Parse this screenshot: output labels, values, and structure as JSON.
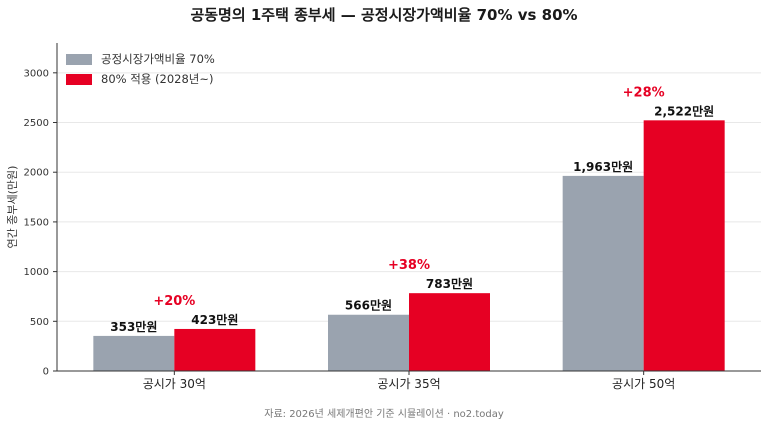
{
  "chart_data": {
    "type": "bar",
    "title": "공동명의 1주택 종부세 — 공정시장가액비율 70% vs 80%",
    "ylabel": "연간 종부세(만원)",
    "xlabel": "",
    "categories": [
      "공시가 30억",
      "공시가 35억",
      "공시가 50억"
    ],
    "ylim": [
      0,
      3300
    ],
    "yticks": [
      0,
      500,
      1000,
      1500,
      2000,
      2500,
      3000
    ],
    "grid": true,
    "legend_position": "top-left",
    "series": [
      {
        "name": "공정시장가액비율 70%",
        "color": "#9aa3af",
        "values": [
          353,
          566,
          1963
        ],
        "labels": [
          "353만원",
          "566만원",
          "1,963만원"
        ]
      },
      {
        "name": "80% 적용 (2028년~)",
        "color": "#e60023",
        "values": [
          423,
          783,
          2522
        ],
        "labels": [
          "423만원",
          "783만원",
          "2,522만원"
        ]
      }
    ],
    "annotations": [
      "+20%",
      "+38%",
      "+28%"
    ],
    "annotation_color": "#e60023",
    "source": "자료: 2026년 세제개편안 기준 시뮬레이션 · no2.today"
  }
}
